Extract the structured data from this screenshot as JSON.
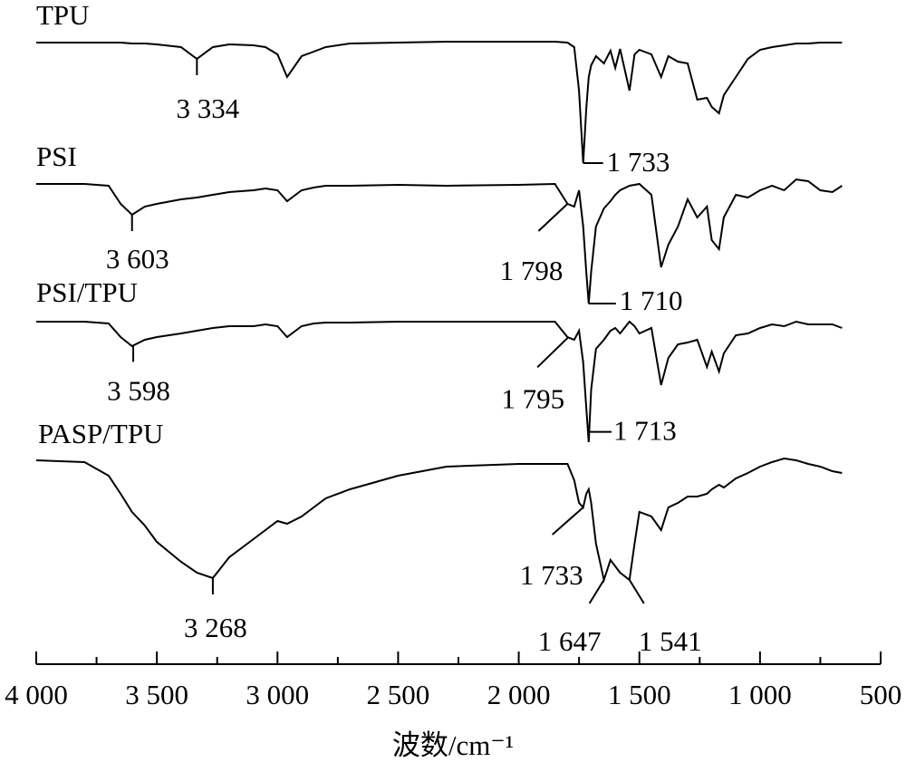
{
  "chart_data": {
    "type": "line",
    "x_label": "波数/cm⁻¹",
    "xlim": [
      4000,
      500
    ],
    "ylim": [
      0,
      72
    ],
    "xticks": [
      {
        "value": 4000,
        "label": "4 000"
      },
      {
        "value": 3500,
        "label": "3 500"
      },
      {
        "value": 3000,
        "label": "3 000"
      },
      {
        "value": 2500,
        "label": "2 500"
      },
      {
        "value": 2000,
        "label": "2 000"
      },
      {
        "value": 1500,
        "label": "1 500"
      },
      {
        "value": 1000,
        "label": "1 000"
      },
      500
    ],
    "xminorticks": [
      3750,
      3250,
      2750,
      2250,
      1750,
      1250,
      750
    ],
    "x": [
      4000,
      3800,
      3700,
      3650,
      3603,
      3550,
      3500,
      3400,
      3334,
      3268,
      3200,
      3100,
      3050,
      3000,
      2960,
      2900,
      2850,
      2800,
      2700,
      2500,
      2300,
      2000,
      1850,
      1798,
      1770,
      1750,
      1733,
      1720,
      1710,
      1700,
      1680,
      1647,
      1620,
      1600,
      1580,
      1541,
      1520,
      1500,
      1450,
      1410,
      1380,
      1340,
      1300,
      1260,
      1220,
      1200,
      1170,
      1150,
      1100,
      1050,
      1000,
      950,
      900,
      850,
      800,
      750,
      700,
      660
    ],
    "series": [
      {
        "name": "TPU",
        "color": "#000000",
        "values": [
          67.3,
          67.3,
          67.3,
          67.3,
          67.2,
          67.2,
          67.1,
          66.8,
          65.5,
          66.8,
          67.1,
          67,
          66.8,
          66,
          63.5,
          65.8,
          66.3,
          66.8,
          67.2,
          67.3,
          67.4,
          67.4,
          67.4,
          67.3,
          66.8,
          62,
          54,
          60,
          63.5,
          64.8,
          65.8,
          65,
          66.4,
          64.5,
          66.6,
          62,
          66,
          66.5,
          66,
          63.5,
          65.8,
          65.2,
          65,
          61,
          61.2,
          60.2,
          59.5,
          61.5,
          63.5,
          65.5,
          66.5,
          66.8,
          67,
          67.2,
          67.2,
          67.3,
          67.3,
          67.3
        ],
        "annotations": [
          {
            "value": 3334,
            "label": "3 334"
          },
          {
            "value": 1733,
            "label": "1 733"
          }
        ]
      },
      {
        "name": "PSI",
        "color": "#000000",
        "values": [
          51.7,
          51.7,
          51.5,
          49.5,
          48.3,
          49.2,
          49.5,
          50,
          50.2,
          50.5,
          50.8,
          51,
          51.2,
          51,
          49.8,
          51,
          51.3,
          51.5,
          51.5,
          51.6,
          51.5,
          51.6,
          51.7,
          49.5,
          49.2,
          51,
          47,
          42,
          38.5,
          42,
          47,
          49,
          49.8,
          50.5,
          51,
          51.5,
          51.6,
          51.7,
          50.5,
          42.5,
          45,
          47,
          50,
          48,
          49.2,
          45.5,
          44.5,
          48,
          50.5,
          50.2,
          51,
          51.5,
          51,
          52.2,
          52,
          51,
          50.8,
          51.5
        ],
        "annotations": [
          {
            "value": 3603,
            "label": "3 603"
          },
          {
            "value": 1798,
            "label": "1 798"
          },
          {
            "value": 1710,
            "label": "1 710"
          }
        ]
      },
      {
        "name": "PSI/TPU",
        "color": "#000000",
        "values": [
          36.5,
          36.5,
          36.3,
          34.8,
          33.8,
          34.5,
          34.8,
          35.2,
          35.5,
          35.8,
          36,
          36,
          36.2,
          36,
          34.8,
          36,
          36.3,
          36.4,
          36.4,
          36.5,
          36.5,
          36.5,
          36.5,
          34.8,
          34.5,
          35.5,
          32,
          27,
          23.2,
          29,
          33.5,
          34.5,
          35.5,
          35.8,
          35.2,
          36.5,
          36,
          35.2,
          35.8,
          29.5,
          32.5,
          34,
          34.2,
          34.5,
          31.5,
          33.2,
          31,
          33,
          35,
          35.2,
          35.8,
          36.2,
          36,
          36.5,
          36.2,
          36.2,
          36.2,
          35.8
        ],
        "annotations": [
          {
            "value": 3598,
            "label": "3 598"
          },
          {
            "value": 1795,
            "label": "1 795"
          },
          {
            "value": 1713,
            "label": "1 713"
          }
        ]
      },
      {
        "name": "PASP/TPU",
        "color": "#000000",
        "values": [
          21.2,
          21,
          19.5,
          17.5,
          15.5,
          14,
          12.2,
          10,
          8.8,
          8.2,
          10.5,
          12.5,
          13.5,
          14.5,
          14.2,
          15,
          16,
          17,
          18,
          19.5,
          20.5,
          20.8,
          20.8,
          20.8,
          19,
          16.5,
          16,
          17.5,
          18,
          16.5,
          12,
          8,
          10.2,
          9.5,
          8.8,
          8,
          12,
          15.5,
          15,
          13.5,
          16,
          16.5,
          17.2,
          17.2,
          17.5,
          18,
          18.5,
          18.2,
          19.2,
          19.8,
          20.5,
          21,
          21.4,
          21.2,
          20.8,
          20.5,
          20,
          19.8
        ],
        "annotations": [
          {
            "value": 3268,
            "label": "3 268"
          },
          {
            "value": 1733,
            "label": "1 733"
          },
          {
            "value": 1647,
            "label": "1 647"
          },
          {
            "value": 1541,
            "label": "1 541"
          }
        ]
      }
    ]
  }
}
